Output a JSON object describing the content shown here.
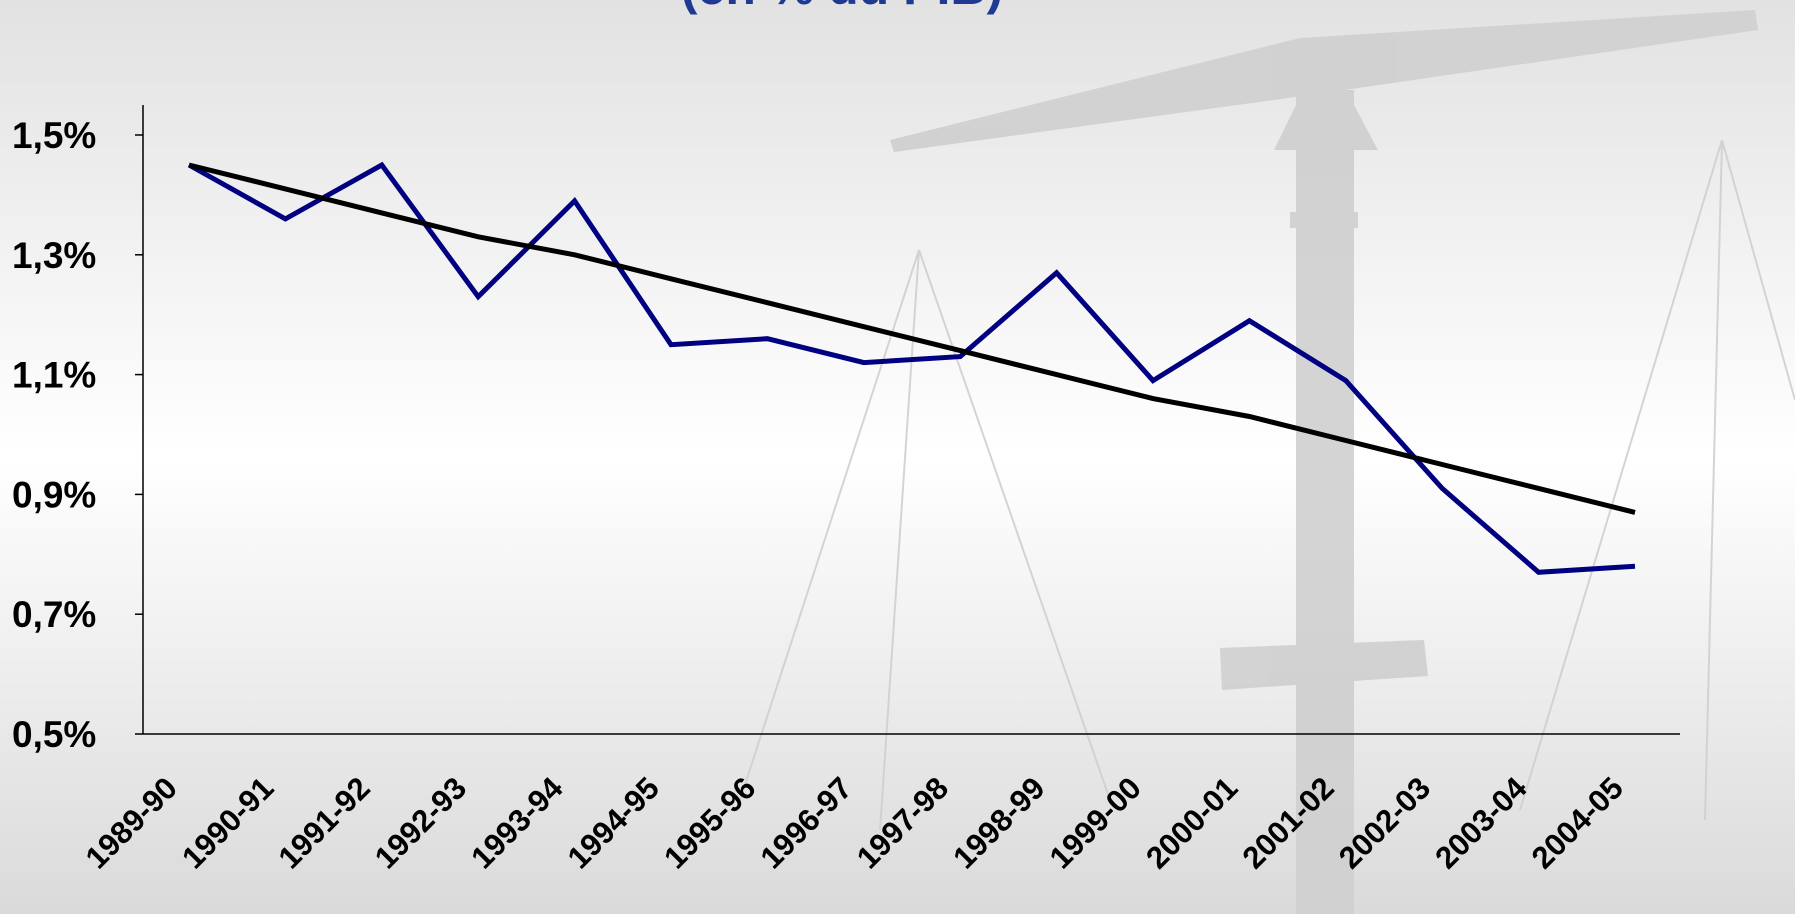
{
  "chart_data": {
    "type": "line",
    "title": "(en % du PIB)",
    "categories": [
      "1989-90",
      "1990-91",
      "1991-92",
      "1992-93",
      "1993-94",
      "1994-95",
      "1995-96",
      "1996-97",
      "1997-98",
      "1998-99",
      "1999-00",
      "2000-01",
      "2001-02",
      "2002-03",
      "2003-04",
      "2004-05"
    ],
    "series": [
      {
        "color": "#000080",
        "values": [
          1.45,
          1.36,
          1.45,
          1.23,
          1.39,
          1.15,
          1.16,
          1.12,
          1.13,
          1.27,
          1.09,
          1.19,
          1.09,
          0.91,
          0.77,
          0.78
        ]
      }
    ],
    "trend": {
      "color": "#000000",
      "values": [
        1.45,
        1.41,
        1.37,
        1.33,
        1.3,
        1.26,
        1.22,
        1.18,
        1.14,
        1.1,
        1.06,
        1.03,
        0.99,
        0.95,
        0.91,
        0.87
      ]
    },
    "ylim": [
      0.5,
      1.5
    ],
    "yticks": [
      {
        "value": 0.5,
        "label": "0,5%"
      },
      {
        "value": 0.7,
        "label": "0,7%"
      },
      {
        "value": 0.9,
        "label": "0,9%"
      },
      {
        "value": 1.1,
        "label": "1,1%"
      },
      {
        "value": 1.3,
        "label": "1,3%"
      },
      {
        "value": 1.5,
        "label": "1,5%"
      }
    ],
    "grid": false
  }
}
